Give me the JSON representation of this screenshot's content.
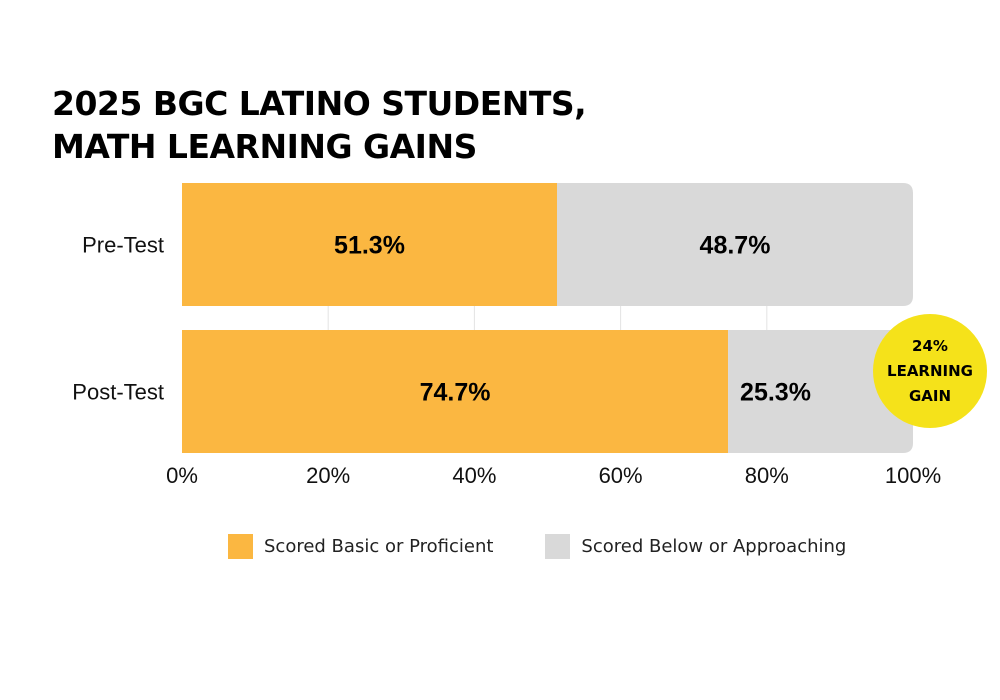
{
  "title": {
    "line1": "2025 BGC LATINO STUDENTS,",
    "line2": "MATH LEARNING GAINS"
  },
  "colors": {
    "basic_proficient": "#FBB741",
    "below_approaching": "#D9D9D9",
    "badge": "#F5E21A",
    "gridline": "#E3E3E3"
  },
  "chart_data": {
    "type": "bar",
    "orientation": "horizontal",
    "stacked": true,
    "title": "2025 BGC LATINO STUDENTS, MATH LEARNING GAINS",
    "categories": [
      "Pre-Test",
      "Post-Test"
    ],
    "series": [
      {
        "name": "Scored Basic or Proficient",
        "values": [
          51.3,
          74.7
        ],
        "labels": [
          "51.3%",
          "74.7%"
        ]
      },
      {
        "name": "Scored Below or Approaching",
        "values": [
          48.7,
          25.3
        ],
        "labels": [
          "48.7%",
          "25.3%"
        ]
      }
    ],
    "xlim": [
      0,
      100
    ],
    "xticks": [
      0,
      20,
      40,
      60,
      80,
      100
    ],
    "xtick_labels": [
      "0%",
      "20%",
      "40%",
      "60%",
      "80%",
      "100%"
    ],
    "xlabel": "",
    "ylabel": "",
    "grid": true,
    "legend_position": "bottom",
    "annotation": {
      "lines": [
        "24%",
        "LEARNING",
        "GAIN"
      ],
      "category": "Post-Test"
    }
  }
}
